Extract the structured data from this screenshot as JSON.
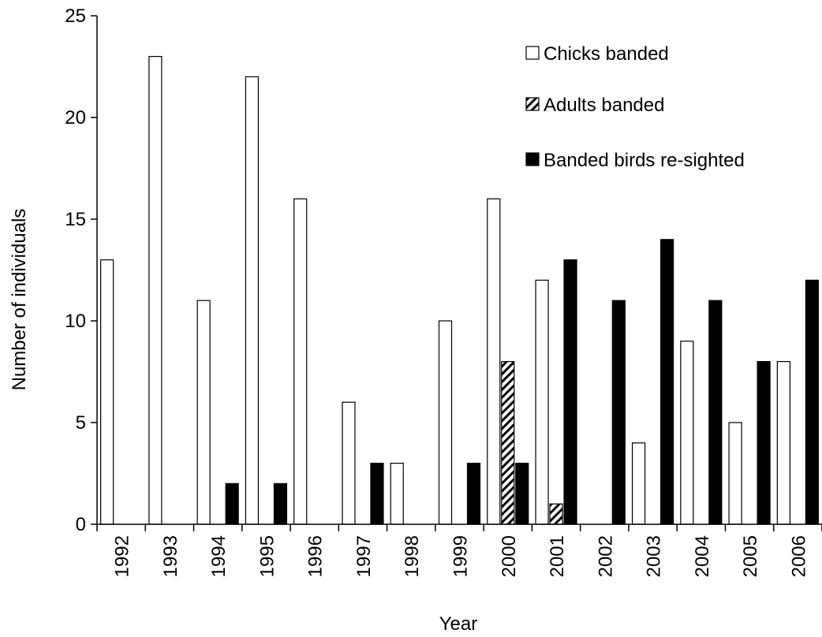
{
  "chart_data": {
    "type": "bar",
    "title": "",
    "xlabel": "Year",
    "ylabel": "Number of individuals",
    "ylim": [
      0,
      25
    ],
    "yticks": [
      0,
      5,
      10,
      15,
      20,
      25
    ],
    "grid": false,
    "legend_placement": "top-right",
    "categories": [
      "1992",
      "1993",
      "1994",
      "1995",
      "1996",
      "1997",
      "1998",
      "1999",
      "2000",
      "2001",
      "2002",
      "2003",
      "2004",
      "2005",
      "2006"
    ],
    "series": [
      {
        "name": "Chicks banded",
        "fill": "white",
        "values": [
          13,
          23,
          11,
          22,
          16,
          6,
          3,
          10,
          16,
          12,
          0,
          4,
          9,
          5,
          8
        ]
      },
      {
        "name": "Adults banded",
        "fill": "hatched",
        "values": [
          0,
          0,
          0,
          0,
          0,
          0,
          0,
          0,
          8,
          1,
          0,
          0,
          0,
          0,
          0
        ]
      },
      {
        "name": "Banded birds re-sighted",
        "fill": "black",
        "values": [
          0,
          0,
          2,
          2,
          0,
          3,
          0,
          3,
          3,
          13,
          11,
          14,
          11,
          8,
          12
        ]
      }
    ]
  }
}
